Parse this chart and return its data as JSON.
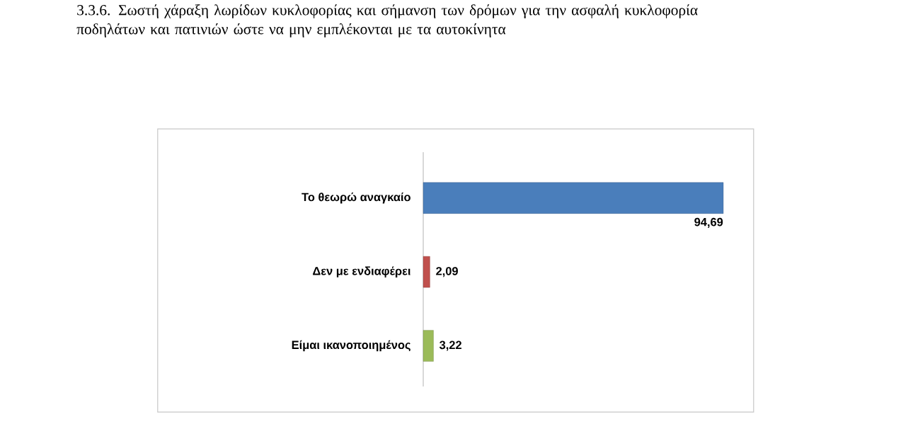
{
  "chart_data": {
    "type": "bar",
    "orientation": "horizontal",
    "title": "3.3.6.\tΣωστή χάραξη λωρίδων κυκλοφορίας και σήμανση των δρόμων για την ασφαλή κυκλοφορία ποδηλάτων και πατινιών ώστε να μην εμπλέκονται με τα αυτοκίνητα",
    "categories": [
      "Το θεωρώ αναγκαίο",
      "Δεν με ενδιαφέρει",
      "Είμαι ικανοποιημένος"
    ],
    "values": [
      94.69,
      2.09,
      3.22
    ],
    "colors": [
      "#4a7ebb",
      "#c0504d",
      "#9bbb59"
    ],
    "value_labels": [
      "94,69",
      "2,09",
      "3,22"
    ]
  }
}
